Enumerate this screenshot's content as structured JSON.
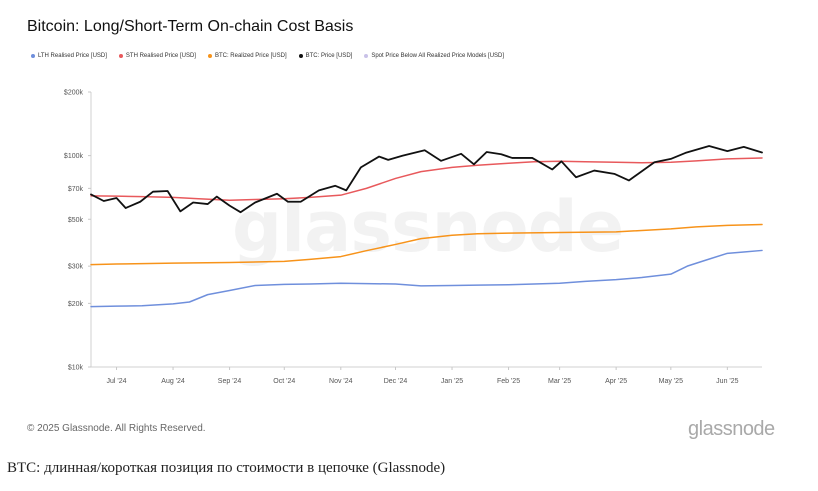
{
  "page": {
    "caption": "BTC: длинная/короткая позиция по стоимости в цепочке (Glassnode)"
  },
  "chart_data": {
    "type": "line",
    "title": "Bitcoin: Long/Short-Term On-chain Cost Basis",
    "xlabel": "",
    "ylabel": "",
    "scale": "log",
    "ylim": [
      10000,
      200000
    ],
    "grid": false,
    "legend_position": "top-left",
    "xlim": [
      "2024-06-17",
      "2025-06-20"
    ],
    "y_ticks": [
      {
        "value": 10000,
        "label": "$10k"
      },
      {
        "value": 20000,
        "label": "$20k"
      },
      {
        "value": 30000,
        "label": "$30k"
      },
      {
        "value": 50000,
        "label": "$50k"
      },
      {
        "value": 70000,
        "label": "$70k"
      },
      {
        "value": 100000,
        "label": "$100k"
      },
      {
        "value": 200000,
        "label": "$200k"
      }
    ],
    "x_ticks": [
      {
        "date": "2024-07-01",
        "label": "Jul '24"
      },
      {
        "date": "2024-08-01",
        "label": "Aug '24"
      },
      {
        "date": "2024-09-01",
        "label": "Sep '24"
      },
      {
        "date": "2024-10-01",
        "label": "Oct '24"
      },
      {
        "date": "2024-11-01",
        "label": "Nov '24"
      },
      {
        "date": "2024-12-01",
        "label": "Dec '24"
      },
      {
        "date": "2025-01-01",
        "label": "Jan '25"
      },
      {
        "date": "2025-02-01",
        "label": "Feb '25"
      },
      {
        "date": "2025-03-01",
        "label": "Mar '25"
      },
      {
        "date": "2025-04-01",
        "label": "Apr '25"
      },
      {
        "date": "2025-05-01",
        "label": "May '25"
      },
      {
        "date": "2025-06-01",
        "label": "Jun '25"
      }
    ],
    "series": [
      {
        "name": "LTH Realised Price [USD]",
        "color": "#6f8fdc",
        "points": [
          [
            "2024-06-17",
            19300
          ],
          [
            "2024-07-01",
            19400
          ],
          [
            "2024-07-15",
            19500
          ],
          [
            "2024-08-01",
            19900
          ],
          [
            "2024-08-10",
            20300
          ],
          [
            "2024-08-20",
            22000
          ],
          [
            "2024-09-01",
            23000
          ],
          [
            "2024-09-15",
            24300
          ],
          [
            "2024-10-01",
            24600
          ],
          [
            "2024-10-15",
            24700
          ],
          [
            "2024-11-01",
            24900
          ],
          [
            "2024-11-15",
            24800
          ],
          [
            "2024-12-01",
            24700
          ],
          [
            "2024-12-15",
            24200
          ],
          [
            "2025-01-01",
            24300
          ],
          [
            "2025-01-15",
            24400
          ],
          [
            "2025-02-01",
            24500
          ],
          [
            "2025-02-15",
            24700
          ],
          [
            "2025-03-01",
            24900
          ],
          [
            "2025-03-15",
            25400
          ],
          [
            "2025-04-01",
            25900
          ],
          [
            "2025-04-15",
            26500
          ],
          [
            "2025-05-01",
            27500
          ],
          [
            "2025-05-10",
            30000
          ],
          [
            "2025-05-20",
            32000
          ],
          [
            "2025-06-01",
            34500
          ],
          [
            "2025-06-10",
            35000
          ],
          [
            "2025-06-20",
            35600
          ]
        ]
      },
      {
        "name": "STH Realised Price [USD]",
        "color": "#e8595c",
        "points": [
          [
            "2024-06-17",
            64500
          ],
          [
            "2024-07-01",
            64300
          ],
          [
            "2024-07-15",
            64000
          ],
          [
            "2024-08-01",
            63500
          ],
          [
            "2024-08-15",
            62500
          ],
          [
            "2024-09-01",
            61500
          ],
          [
            "2024-09-15",
            62000
          ],
          [
            "2024-10-01",
            62500
          ],
          [
            "2024-10-15",
            63500
          ],
          [
            "2024-11-01",
            65000
          ],
          [
            "2024-11-15",
            70000
          ],
          [
            "2024-12-01",
            78000
          ],
          [
            "2024-12-15",
            84000
          ],
          [
            "2025-01-01",
            88000
          ],
          [
            "2025-01-15",
            90000
          ],
          [
            "2025-02-01",
            92000
          ],
          [
            "2025-02-15",
            93500
          ],
          [
            "2025-03-01",
            94000
          ],
          [
            "2025-03-15",
            93500
          ],
          [
            "2025-04-01",
            93000
          ],
          [
            "2025-04-15",
            92500
          ],
          [
            "2025-05-01",
            93000
          ],
          [
            "2025-05-15",
            94500
          ],
          [
            "2025-06-01",
            96500
          ],
          [
            "2025-06-20",
            97500
          ]
        ]
      },
      {
        "name": "BTC: Realized Price [USD]",
        "color": "#f7931a",
        "points": [
          [
            "2024-06-17",
            30500
          ],
          [
            "2024-07-01",
            30700
          ],
          [
            "2024-08-01",
            31000
          ],
          [
            "2024-09-01",
            31200
          ],
          [
            "2024-10-01",
            31600
          ],
          [
            "2024-10-15",
            32300
          ],
          [
            "2024-11-01",
            33300
          ],
          [
            "2024-11-15",
            35500
          ],
          [
            "2024-12-01",
            38000
          ],
          [
            "2024-12-15",
            40500
          ],
          [
            "2025-01-01",
            42000
          ],
          [
            "2025-01-15",
            42700
          ],
          [
            "2025-02-01",
            43000
          ],
          [
            "2025-03-01",
            43300
          ],
          [
            "2025-04-01",
            43600
          ],
          [
            "2025-05-01",
            45000
          ],
          [
            "2025-05-15",
            46000
          ],
          [
            "2025-06-01",
            46800
          ],
          [
            "2025-06-20",
            47200
          ]
        ]
      },
      {
        "name": "BTC: Price [USD]",
        "color": "#111111",
        "points": [
          [
            "2024-06-17",
            65500
          ],
          [
            "2024-06-24",
            61000
          ],
          [
            "2024-07-01",
            63000
          ],
          [
            "2024-07-06",
            56500
          ],
          [
            "2024-07-14",
            60500
          ],
          [
            "2024-07-21",
            67500
          ],
          [
            "2024-07-29",
            68000
          ],
          [
            "2024-08-05",
            54500
          ],
          [
            "2024-08-12",
            60000
          ],
          [
            "2024-08-20",
            59000
          ],
          [
            "2024-08-25",
            64000
          ],
          [
            "2024-09-01",
            58000
          ],
          [
            "2024-09-07",
            54000
          ],
          [
            "2024-09-15",
            60000
          ],
          [
            "2024-09-27",
            66000
          ],
          [
            "2024-10-03",
            60500
          ],
          [
            "2024-10-10",
            60500
          ],
          [
            "2024-10-20",
            68500
          ],
          [
            "2024-10-29",
            72000
          ],
          [
            "2024-11-04",
            68500
          ],
          [
            "2024-11-12",
            88000
          ],
          [
            "2024-11-22",
            99000
          ],
          [
            "2024-11-27",
            95500
          ],
          [
            "2024-12-05",
            100000
          ],
          [
            "2024-12-17",
            106000
          ],
          [
            "2024-12-26",
            94500
          ],
          [
            "2025-01-06",
            102000
          ],
          [
            "2025-01-13",
            91000
          ],
          [
            "2025-01-20",
            104000
          ],
          [
            "2025-01-28",
            101500
          ],
          [
            "2025-02-03",
            97500
          ],
          [
            "2025-02-14",
            97500
          ],
          [
            "2025-02-25",
            86000
          ],
          [
            "2025-03-02",
            94000
          ],
          [
            "2025-03-10",
            79000
          ],
          [
            "2025-03-20",
            85000
          ],
          [
            "2025-03-31",
            82000
          ],
          [
            "2025-04-08",
            76300
          ],
          [
            "2025-04-22",
            93000
          ],
          [
            "2025-05-01",
            96500
          ],
          [
            "2025-05-09",
            103000
          ],
          [
            "2025-05-22",
            111000
          ],
          [
            "2025-06-01",
            105000
          ],
          [
            "2025-06-10",
            110000
          ],
          [
            "2025-06-20",
            103500
          ]
        ]
      },
      {
        "name": "Spot Price Below All Realized Price Models [USD]",
        "color": "#c9c2e8",
        "points": []
      }
    ]
  },
  "footer": {
    "copyright": "© 2025 Glassnode. All Rights Reserved.",
    "logo_text": "glassnode"
  },
  "watermark": {
    "text": "glassnode"
  }
}
